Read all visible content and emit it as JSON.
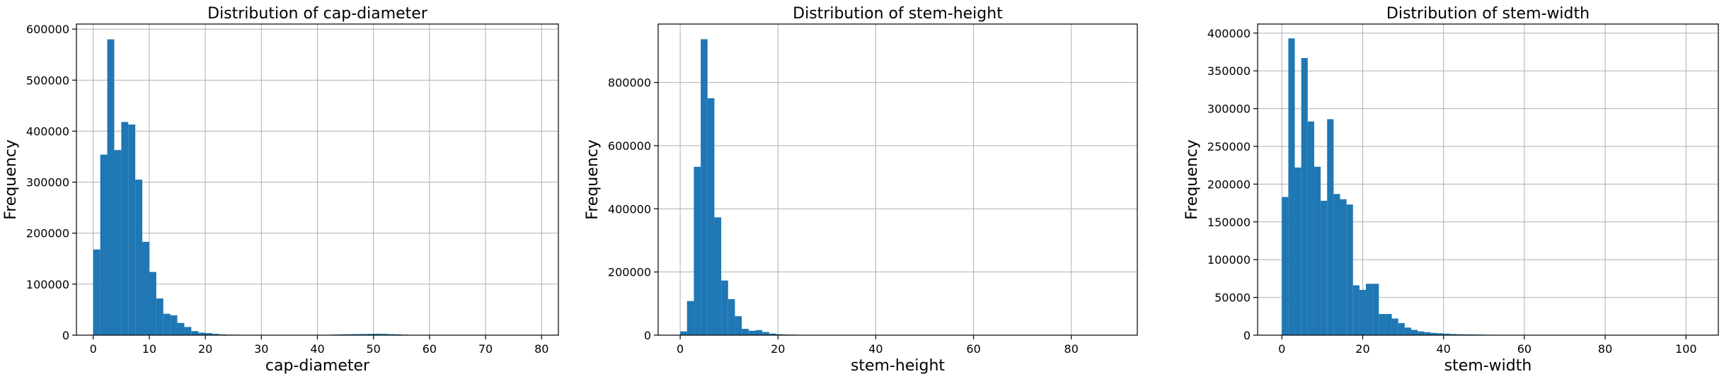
{
  "chart_data": [
    {
      "type": "bar",
      "title": "Distribution of cap-diameter",
      "xlabel": "cap-diameter",
      "ylabel": "Frequency",
      "xlim": [
        -3,
        83
      ],
      "ylim": [
        0,
        610000
      ],
      "xticks": [
        0,
        10,
        20,
        30,
        40,
        50,
        60,
        70,
        80
      ],
      "yticks": [
        0,
        100000,
        200000,
        300000,
        400000,
        500000,
        600000
      ],
      "grid": true,
      "color": "#1f77b4",
      "bin_edges": [
        0,
        1.25,
        2.5,
        3.75,
        5,
        6.25,
        7.5,
        8.75,
        10,
        11.25,
        12.5,
        13.75,
        15,
        16.25,
        17.5,
        18.75,
        20,
        21.25,
        22.5,
        23.75,
        25,
        26.25,
        27.5,
        28.75,
        30,
        31.25,
        32.5,
        33.75,
        35,
        36.25,
        37.5,
        38.75,
        40,
        41.25,
        42.5,
        43.75,
        45,
        46.25,
        47.5,
        48.75,
        50,
        51.25,
        52.5,
        53.75,
        55,
        56.25,
        57.5,
        58.75,
        60,
        61.25,
        62.5,
        63.75,
        65,
        66.25,
        67.5,
        68.75,
        70,
        71.25,
        72.5,
        73.75,
        75,
        76.25,
        77.5,
        78.75,
        80,
        81.25
      ],
      "values": [
        168000,
        354000,
        580000,
        363000,
        418000,
        413000,
        305000,
        183000,
        124000,
        72000,
        42000,
        39000,
        24000,
        16000,
        8000,
        5000,
        4000,
        2500,
        1500,
        1000,
        800,
        600,
        500,
        400,
        300,
        300,
        300,
        300,
        300,
        300,
        300,
        300,
        300,
        300,
        1200,
        1500,
        1800,
        2000,
        2200,
        2500,
        2800,
        2600,
        2000,
        1500,
        1000,
        500,
        300,
        200,
        200,
        200,
        200,
        200,
        200,
        200,
        200,
        200,
        200,
        200,
        200,
        200,
        100,
        100,
        100,
        100,
        100
      ]
    },
    {
      "type": "bar",
      "title": "Distribution of stem-height",
      "xlabel": "stem-height",
      "ylabel": "Frequency",
      "xlim": [
        -4.5,
        93.5
      ],
      "ylim": [
        0,
        985000
      ],
      "xticks": [
        0,
        20,
        40,
        60,
        80
      ],
      "yticks": [
        0,
        200000,
        400000,
        600000,
        800000
      ],
      "grid": true,
      "color": "#1f77b4",
      "bin_edges": [
        0,
        1.4,
        2.8,
        4.2,
        5.6,
        7.0,
        8.4,
        9.8,
        11.2,
        12.6,
        14.0,
        15.4,
        16.8,
        18.2,
        19.6,
        21.0,
        22.4,
        23.8,
        25.2,
        26.6,
        28.0,
        29.4,
        30.8,
        32.2,
        33.6,
        35.0,
        36.4,
        37.8,
        39.2,
        40.6,
        42.0,
        43.4,
        44.8,
        46.2,
        47.6,
        49.0,
        50.4,
        51.8,
        53.2,
        54.6,
        56.0,
        57.4,
        58.8,
        60.2,
        61.6,
        63.0,
        64.4,
        65.8,
        67.2,
        68.6,
        70.0,
        71.4,
        72.8,
        74.2,
        75.6,
        77.0,
        78.4,
        79.8,
        81.2,
        82.6,
        84.0,
        85.4,
        86.8,
        88.2
      ],
      "values": [
        12000,
        108000,
        533000,
        937000,
        750000,
        373000,
        173000,
        114000,
        60000,
        20000,
        14000,
        16000,
        10000,
        5000,
        3000,
        2000,
        1500,
        1200,
        1000,
        800,
        600,
        500,
        400,
        400,
        300,
        300,
        300,
        300,
        300,
        300,
        300,
        300,
        300,
        300,
        300,
        300,
        300,
        300,
        300,
        300,
        300,
        300,
        300,
        300,
        300,
        300,
        300,
        300,
        300,
        300,
        300,
        300,
        300,
        300,
        300,
        300,
        300,
        300,
        300,
        300,
        300,
        300,
        300
      ]
    },
    {
      "type": "bar",
      "title": "Distribution of stem-width",
      "xlabel": "stem-width",
      "ylabel": "Frequency",
      "xlim": [
        -6,
        108
      ],
      "ylim": [
        0,
        412000
      ],
      "xticks": [
        0,
        20,
        40,
        60,
        80,
        100
      ],
      "yticks": [
        0,
        50000,
        100000,
        150000,
        200000,
        250000,
        300000,
        350000,
        400000
      ],
      "grid": true,
      "color": "#1f77b4",
      "bin_edges": [
        0,
        1.6,
        3.2,
        4.8,
        6.4,
        8.0,
        9.6,
        11.2,
        12.8,
        14.4,
        16.0,
        17.6,
        19.2,
        20.8,
        22.4,
        24.0,
        25.6,
        27.2,
        28.8,
        30.4,
        32.0,
        33.6,
        35.2,
        36.8,
        38.4,
        40.0,
        41.6,
        43.2,
        44.8,
        46.4,
        48.0,
        49.6,
        51.2,
        52.8,
        54.4,
        56.0,
        57.6,
        59.2,
        60.8,
        62.4,
        64.0,
        65.6,
        67.2,
        68.8,
        70.4,
        72.0,
        73.6,
        75.2,
        76.8,
        78.4,
        80.0,
        81.6,
        83.2,
        84.8,
        86.4,
        88.0,
        89.6,
        91.2,
        92.8,
        94.4,
        96.0,
        97.6,
        99.2,
        100.8,
        102.4
      ],
      "values": [
        183000,
        393000,
        222000,
        367000,
        283000,
        223000,
        178000,
        286000,
        187000,
        180000,
        173000,
        66000,
        60000,
        68000,
        68000,
        28000,
        28000,
        22000,
        16000,
        10000,
        7000,
        5000,
        4000,
        3000,
        2500,
        2000,
        1500,
        1200,
        1000,
        900,
        800,
        600,
        500,
        400,
        400,
        300,
        300,
        300,
        300,
        300,
        300,
        300,
        300,
        300,
        300,
        300,
        300,
        300,
        300,
        300,
        300,
        300,
        300,
        300,
        300,
        300,
        300,
        300,
        300,
        300,
        300,
        300,
        300,
        300
      ]
    }
  ]
}
